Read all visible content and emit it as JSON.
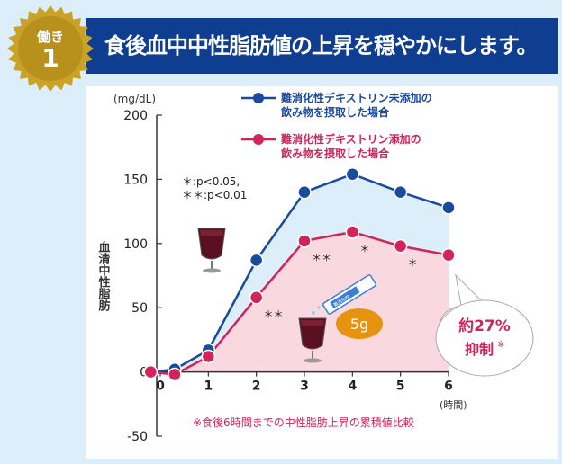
{
  "header": {
    "badge_label": "働き",
    "badge_number": "1",
    "title": "食後血中中性脂肪値の上昇を穏やかにします。"
  },
  "colors": {
    "header_bg": "#0f3d8f",
    "badge_gold": "#c9a227",
    "series_blue": "#1a4a9c",
    "series_pink": "#d0245a",
    "fill_blue": "#dbeefa",
    "fill_pink": "#f9d9df",
    "accent_orange": "#e6930f",
    "note_red": "#d0245a"
  },
  "chart_data": {
    "type": "line",
    "ylabel_unit": "(mg/dL)",
    "ylabel": "血清中性脂肪",
    "xlabel": "(時間)",
    "ylim": [
      -50,
      200
    ],
    "yticks": [
      -50,
      0,
      50,
      100,
      150,
      200
    ],
    "xlim": [
      0,
      6
    ],
    "xticks": [
      0,
      1,
      2,
      3,
      4,
      5,
      6
    ],
    "series": [
      {
        "name_line1": "難消化性デキストリン未添加の",
        "name_line2": "飲み物を摂取した場合",
        "color": "#1a4a9c",
        "x": [
          -0.2,
          0.3,
          1,
          2,
          3,
          4,
          5,
          6
        ],
        "values": [
          0,
          2,
          17,
          87,
          140,
          154,
          140,
          128
        ]
      },
      {
        "name_line1": "難消化性デキストリン添加の",
        "name_line2": "飲み物を摂取した場合",
        "color": "#d0245a",
        "x": [
          -0.2,
          0.3,
          1,
          2,
          3,
          4,
          5,
          6
        ],
        "values": [
          0,
          -2,
          12,
          58,
          102,
          109,
          98,
          91
        ]
      }
    ],
    "significance_note_line1": "＊:p<0.05,",
    "significance_note_line2": "＊＊:p<0.01",
    "annotations": [
      {
        "x": 2,
        "value": 58,
        "label": "＊＊"
      },
      {
        "x": 3,
        "value": 102,
        "label": "＊＊"
      },
      {
        "x": 4,
        "value": 109,
        "label": "＊"
      },
      {
        "x": 5,
        "value": 98,
        "label": "＊"
      }
    ],
    "suppression_line1": "約27%",
    "suppression_line2": "抑制",
    "suppression_mark": "※",
    "dose_label": "5g",
    "stick_label": "難消化性",
    "footnote": "※食後6時間までの中性脂肪上昇の累積値比較"
  }
}
